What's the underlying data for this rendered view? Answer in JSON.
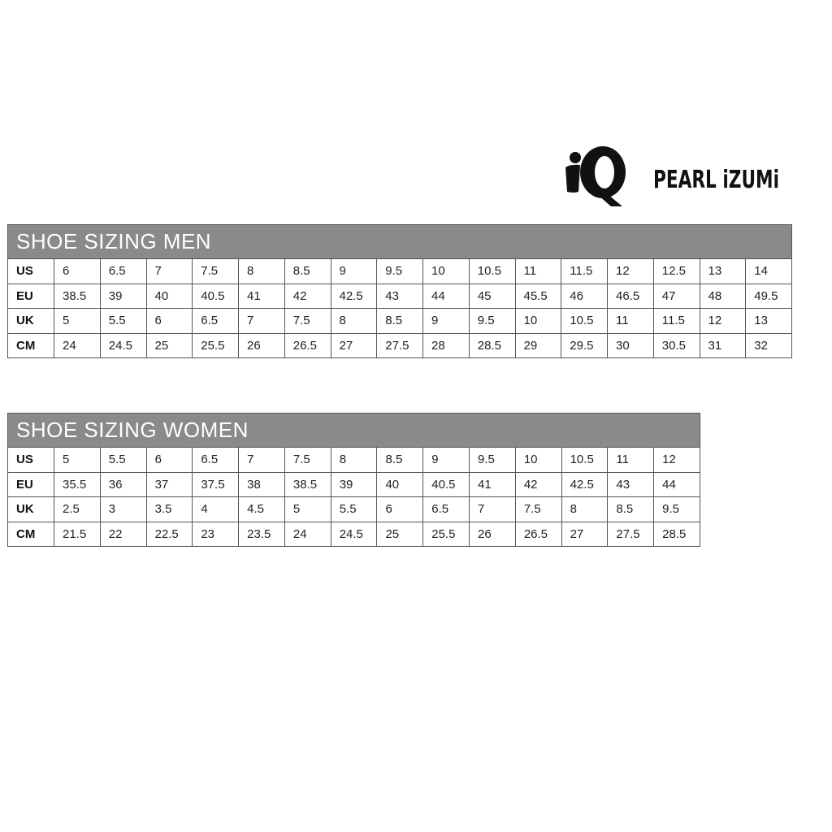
{
  "brand": {
    "logo_text": "PEARL iZUMi",
    "logo_mark": "iQ"
  },
  "tables": [
    {
      "title": "SHOE SIZING MEN",
      "rows": [
        {
          "label": "US",
          "values": [
            "6",
            "6.5",
            "7",
            "7.5",
            "8",
            "8.5",
            "9",
            "9.5",
            "10",
            "10.5",
            "11",
            "11.5",
            "12",
            "12.5",
            "13",
            "14"
          ]
        },
        {
          "label": "EU",
          "values": [
            "38.5",
            "39",
            "40",
            "40.5",
            "41",
            "42",
            "42.5",
            "43",
            "44",
            "45",
            "45.5",
            "46",
            "46.5",
            "47",
            "48",
            "49.5"
          ]
        },
        {
          "label": "UK",
          "values": [
            "5",
            "5.5",
            "6",
            "6.5",
            "7",
            "7.5",
            "8",
            "8.5",
            "9",
            "9.5",
            "10",
            "10.5",
            "11",
            "11.5",
            "12",
            "13"
          ]
        },
        {
          "label": "CM",
          "values": [
            "24",
            "24.5",
            "25",
            "25.5",
            "26",
            "26.5",
            "27",
            "27.5",
            "28",
            "28.5",
            "29",
            "29.5",
            "30",
            "30.5",
            "31",
            "32"
          ]
        }
      ]
    },
    {
      "title": "SHOE SIZING WOMEN",
      "rows": [
        {
          "label": "US",
          "values": [
            "5",
            "5.5",
            "6",
            "6.5",
            "7",
            "7.5",
            "8",
            "8.5",
            "9",
            "9.5",
            "10",
            "10.5",
            "11",
            "12"
          ]
        },
        {
          "label": "EU",
          "values": [
            "35.5",
            "36",
            "37",
            "37.5",
            "38",
            "38.5",
            "39",
            "40",
            "40.5",
            "41",
            "42",
            "42.5",
            "43",
            "44"
          ]
        },
        {
          "label": "UK",
          "values": [
            "2.5",
            "3",
            "3.5",
            "4",
            "4.5",
            "5",
            "5.5",
            "6",
            "6.5",
            "7",
            "7.5",
            "8",
            "8.5",
            "9.5"
          ]
        },
        {
          "label": "CM",
          "values": [
            "21.5",
            "22",
            "22.5",
            "23",
            "23.5",
            "24",
            "24.5",
            "25",
            "25.5",
            "26",
            "26.5",
            "27",
            "27.5",
            "28.5"
          ]
        }
      ]
    }
  ]
}
